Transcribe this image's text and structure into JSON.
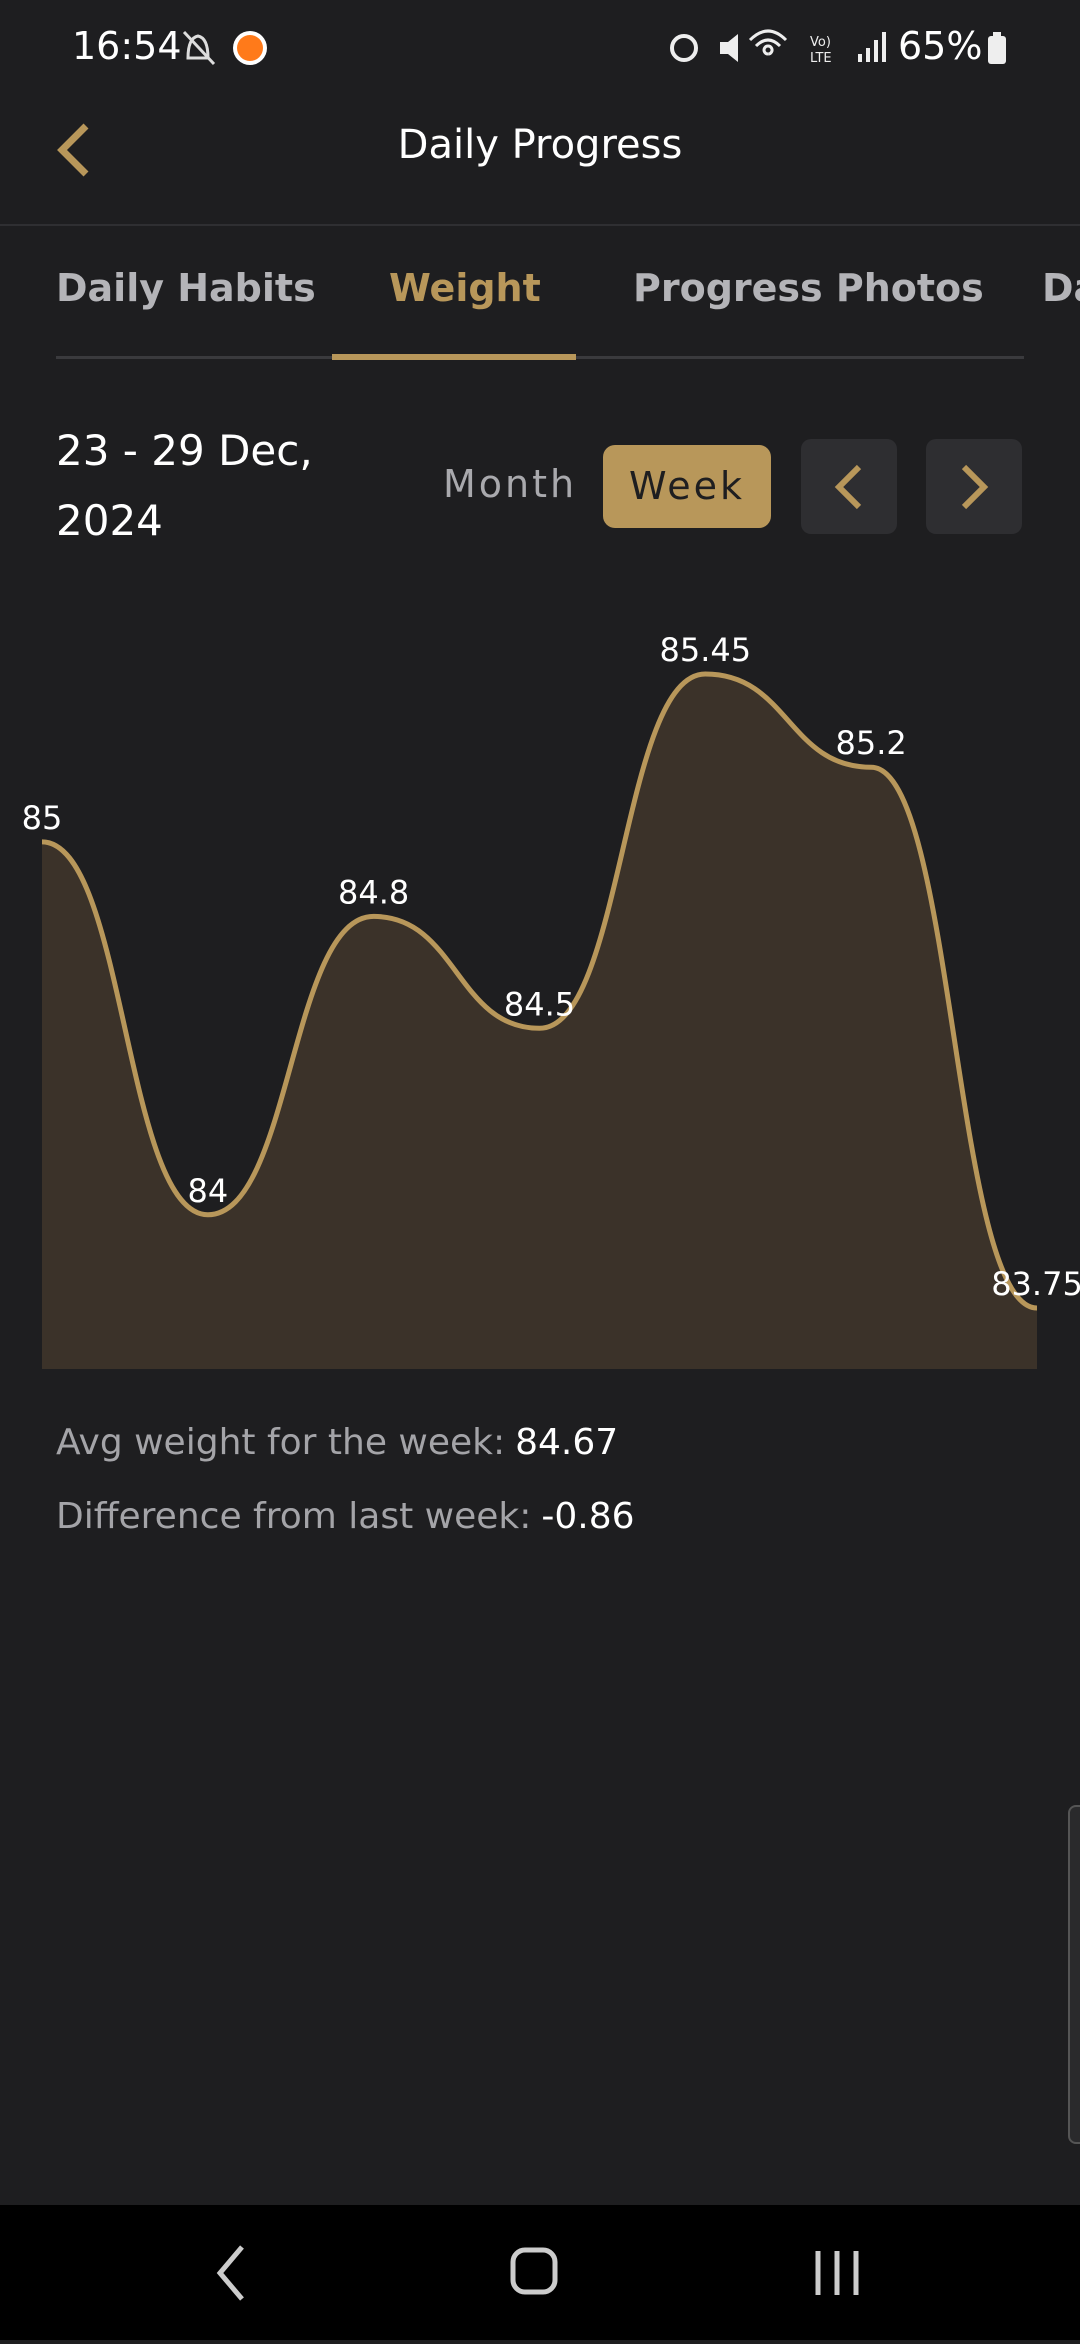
{
  "status_bar": {
    "time": "16:54",
    "battery": "65%"
  },
  "header": {
    "title": "Daily Progress"
  },
  "tabs": [
    "Daily Habits",
    "Weight",
    "Progress Photos",
    "Da"
  ],
  "date_range": "23 - 29 Dec, 2024",
  "range_toggle": [
    "Month",
    "Week"
  ],
  "chart_data": {
    "type": "area",
    "values": [
      85,
      84,
      84.8,
      84.5,
      85.45,
      85.2,
      83.75
    ],
    "color": "#b8975a",
    "fill": "#3b3229"
  },
  "stats": [
    {
      "label": "Avg weight for the week:",
      "value": 84.67
    },
    {
      "label": "Difference from last week:",
      "value": -0.86
    }
  ]
}
